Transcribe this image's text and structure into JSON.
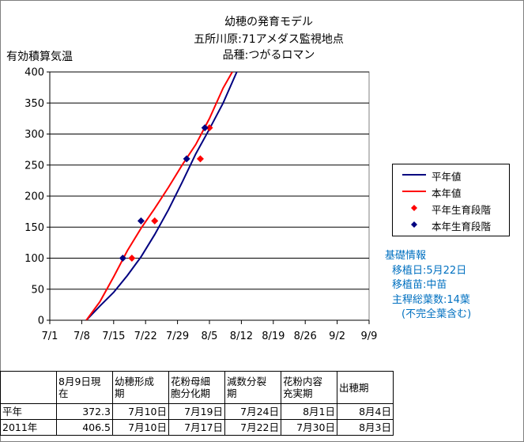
{
  "title_lines": [
    "幼穂の発育モデル",
    "五所川原:71アメダス監視地点",
    "品種:つがるロマン"
  ],
  "chart_data": {
    "type": "line",
    "title": "幼穂の発育モデル",
    "ylabel": "有効積算気温",
    "ylim": [
      0,
      400
    ],
    "yticks": [
      0,
      50,
      100,
      150,
      200,
      250,
      300,
      350,
      400
    ],
    "xlim": [
      "7/1",
      "9/9"
    ],
    "xticks": [
      "7/1",
      "7/8",
      "7/15",
      "7/22",
      "7/29",
      "8/5",
      "8/12",
      "8/19",
      "8/26",
      "9/2",
      "9/9"
    ],
    "grid": true,
    "legend_position": "right",
    "series": [
      {
        "name": "平年値",
        "kind": "line",
        "color": "#000080",
        "x": [
          "7/9",
          "7/12",
          "7/15",
          "7/18",
          "7/21",
          "7/24",
          "7/27",
          "7/30",
          "8/2",
          "8/5",
          "8/8",
          "8/11"
        ],
        "y": [
          0,
          23,
          45,
          72,
          102,
          138,
          178,
          222,
          268,
          308,
          350,
          400
        ]
      },
      {
        "name": "本年値",
        "kind": "line",
        "color": "#ff0000",
        "x": [
          "7/9",
          "7/12",
          "7/15",
          "7/18",
          "7/21",
          "7/24",
          "7/27",
          "7/30",
          "8/2",
          "8/5",
          "8/8",
          "8/10"
        ],
        "y": [
          0,
          30,
          70,
          112,
          148,
          180,
          214,
          250,
          283,
          325,
          374,
          400
        ]
      },
      {
        "name": "平年生育段階",
        "kind": "marker",
        "color": "#ff0000",
        "marker": "diamond",
        "x": [
          "7/19",
          "7/24",
          "8/3",
          "8/5"
        ],
        "y": [
          100,
          160,
          260,
          310
        ]
      },
      {
        "name": "本年生育段階",
        "kind": "marker",
        "color": "#000080",
        "marker": "diamond",
        "x": [
          "7/17",
          "7/21",
          "7/31",
          "8/4"
        ],
        "y": [
          100,
          160,
          260,
          310
        ]
      }
    ]
  },
  "info": {
    "title": "基礎情報",
    "lines": [
      "移植日:5月22日",
      "移植苗:中苗",
      "主稈総葉数:14葉",
      "(不完全葉含む)"
    ]
  },
  "table": {
    "headers": [
      "",
      "8月9日現\n在",
      "幼穂形成\n期",
      "花粉母細\n胞分化期",
      "減数分裂\n期",
      "花粉内容\n充実期",
      "出穂期"
    ],
    "rows": [
      [
        "平年",
        "372.3",
        "7月10日",
        "7月19日",
        "7月24日",
        "8月1日",
        "8月4日"
      ],
      [
        "2011年",
        "406.5",
        "7月10日",
        "7月17日",
        "7月22日",
        "7月30日",
        "8月3日"
      ]
    ]
  }
}
